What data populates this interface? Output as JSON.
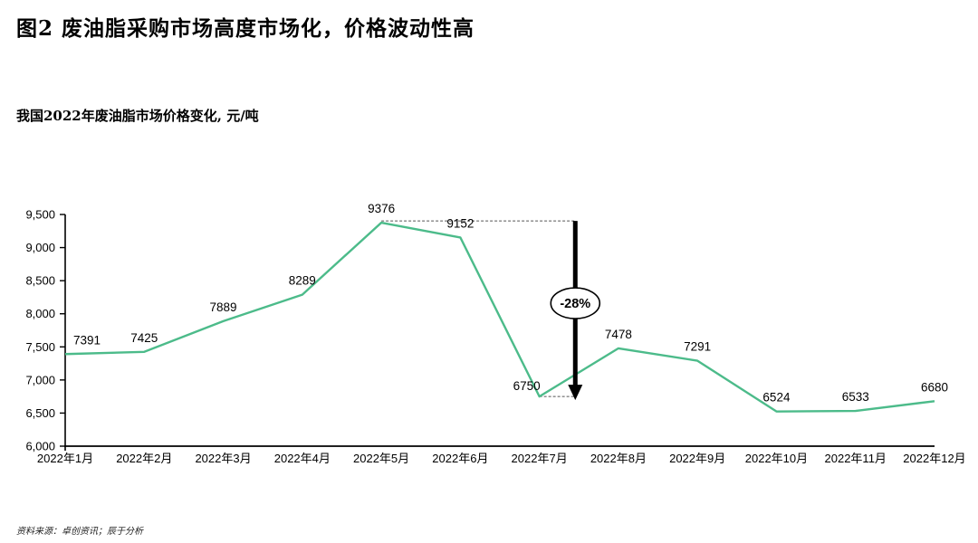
{
  "header": {
    "title": "图2 废油脂采购市场高度市场化，价格波动性高",
    "subtitle": "我国2022年废油脂市场价格变化, 元/吨"
  },
  "footer": {
    "source": "资料来源：卓创资讯；辰于分析"
  },
  "colors": {
    "line": "#4cbb8a",
    "axis": "#000000",
    "data_label": "#000000",
    "dashed_guide": "#555555",
    "arrow": "#000000",
    "annotation_fill": "#ffffff",
    "annotation_stroke": "#000000"
  },
  "annotation": {
    "label": "-28%",
    "from_index": 4,
    "to_index": 6
  },
  "chart_data": {
    "type": "line",
    "title": "我国2022年废油脂市场价格变化, 元/吨",
    "categories": [
      "2022年1月",
      "2022年2月",
      "2022年3月",
      "2022年4月",
      "2022年5月",
      "2022年6月",
      "2022年7月",
      "2022年8月",
      "2022年9月",
      "2022年10月",
      "2022年11月",
      "2022年12月"
    ],
    "values": [
      7391,
      7425,
      7889,
      8289,
      9376,
      9152,
      6750,
      7478,
      7291,
      6524,
      6533,
      6680
    ],
    "xlabel": "",
    "ylabel": "元/吨",
    "ylim": [
      6000,
      9500
    ],
    "ytick_step": 500,
    "grid": false,
    "legend": "none",
    "data_labels": true
  }
}
